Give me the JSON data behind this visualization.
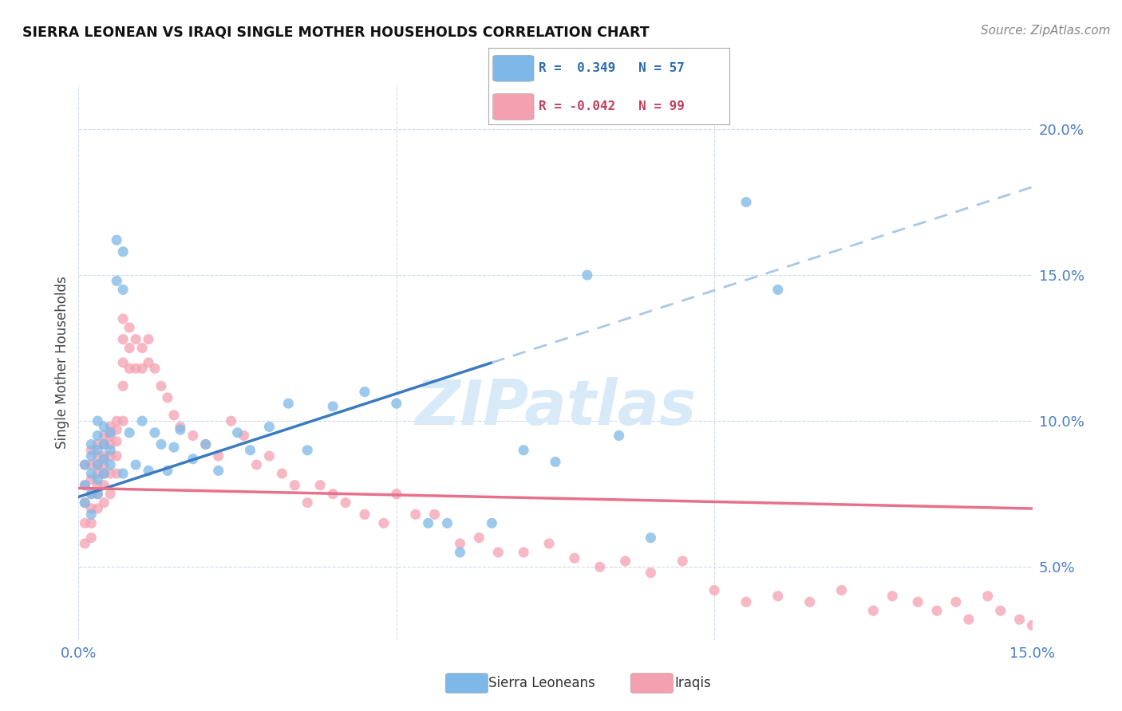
{
  "title": "SIERRA LEONEAN VS IRAQI SINGLE MOTHER HOUSEHOLDS CORRELATION CHART",
  "source": "Source: ZipAtlas.com",
  "ylabel_label": "Single Mother Households",
  "x_min": 0.0,
  "x_max": 0.15,
  "y_min": 0.025,
  "y_max": 0.215,
  "blue_color": "#7db8e8",
  "pink_color": "#f4a0b0",
  "blue_line_color": "#3a7abf",
  "pink_line_color": "#e8708a",
  "dashed_line_color": "#a8c8e8",
  "watermark_color": "#d8eaf8",
  "blue_scatter_x": [
    0.001,
    0.001,
    0.001,
    0.002,
    0.002,
    0.002,
    0.002,
    0.002,
    0.003,
    0.003,
    0.003,
    0.003,
    0.003,
    0.003,
    0.004,
    0.004,
    0.004,
    0.004,
    0.005,
    0.005,
    0.005,
    0.006,
    0.006,
    0.007,
    0.007,
    0.007,
    0.008,
    0.009,
    0.01,
    0.011,
    0.012,
    0.013,
    0.014,
    0.015,
    0.016,
    0.018,
    0.02,
    0.022,
    0.025,
    0.027,
    0.03,
    0.033,
    0.036,
    0.04,
    0.045,
    0.05,
    0.055,
    0.058,
    0.06,
    0.065,
    0.07,
    0.075,
    0.08,
    0.085,
    0.09,
    0.105,
    0.11
  ],
  "blue_scatter_y": [
    0.085,
    0.078,
    0.072,
    0.092,
    0.088,
    0.082,
    0.075,
    0.068,
    0.1,
    0.095,
    0.09,
    0.085,
    0.08,
    0.075,
    0.098,
    0.092,
    0.087,
    0.082,
    0.096,
    0.09,
    0.085,
    0.162,
    0.148,
    0.158,
    0.145,
    0.082,
    0.096,
    0.085,
    0.1,
    0.083,
    0.096,
    0.092,
    0.083,
    0.091,
    0.097,
    0.087,
    0.092,
    0.083,
    0.096,
    0.09,
    0.098,
    0.106,
    0.09,
    0.105,
    0.11,
    0.106,
    0.065,
    0.065,
    0.055,
    0.065,
    0.09,
    0.086,
    0.15,
    0.095,
    0.06,
    0.175,
    0.145
  ],
  "pink_scatter_x": [
    0.001,
    0.001,
    0.001,
    0.001,
    0.001,
    0.002,
    0.002,
    0.002,
    0.002,
    0.002,
    0.002,
    0.002,
    0.003,
    0.003,
    0.003,
    0.003,
    0.003,
    0.003,
    0.003,
    0.004,
    0.004,
    0.004,
    0.004,
    0.004,
    0.004,
    0.004,
    0.005,
    0.005,
    0.005,
    0.005,
    0.005,
    0.005,
    0.006,
    0.006,
    0.006,
    0.006,
    0.006,
    0.007,
    0.007,
    0.007,
    0.007,
    0.007,
    0.008,
    0.008,
    0.008,
    0.009,
    0.009,
    0.01,
    0.01,
    0.011,
    0.011,
    0.012,
    0.013,
    0.014,
    0.015,
    0.016,
    0.018,
    0.02,
    0.022,
    0.024,
    0.026,
    0.028,
    0.03,
    0.032,
    0.034,
    0.036,
    0.038,
    0.04,
    0.042,
    0.045,
    0.048,
    0.05,
    0.053,
    0.056,
    0.06,
    0.063,
    0.066,
    0.07,
    0.074,
    0.078,
    0.082,
    0.086,
    0.09,
    0.095,
    0.1,
    0.105,
    0.11,
    0.115,
    0.12,
    0.125,
    0.128,
    0.132,
    0.135,
    0.138,
    0.14,
    0.143,
    0.145,
    0.148,
    0.15
  ],
  "pink_scatter_y": [
    0.085,
    0.078,
    0.072,
    0.065,
    0.058,
    0.09,
    0.085,
    0.08,
    0.075,
    0.07,
    0.065,
    0.06,
    0.092,
    0.088,
    0.085,
    0.082,
    0.078,
    0.075,
    0.07,
    0.095,
    0.092,
    0.088,
    0.085,
    0.082,
    0.078,
    0.072,
    0.098,
    0.095,
    0.092,
    0.088,
    0.082,
    0.075,
    0.1,
    0.097,
    0.093,
    0.088,
    0.082,
    0.135,
    0.128,
    0.12,
    0.112,
    0.1,
    0.132,
    0.125,
    0.118,
    0.128,
    0.118,
    0.125,
    0.118,
    0.128,
    0.12,
    0.118,
    0.112,
    0.108,
    0.102,
    0.098,
    0.095,
    0.092,
    0.088,
    0.1,
    0.095,
    0.085,
    0.088,
    0.082,
    0.078,
    0.072,
    0.078,
    0.075,
    0.072,
    0.068,
    0.065,
    0.075,
    0.068,
    0.068,
    0.058,
    0.06,
    0.055,
    0.055,
    0.058,
    0.053,
    0.05,
    0.052,
    0.048,
    0.052,
    0.042,
    0.038,
    0.04,
    0.038,
    0.042,
    0.035,
    0.04,
    0.038,
    0.035,
    0.038,
    0.032,
    0.04,
    0.035,
    0.032,
    0.03
  ]
}
